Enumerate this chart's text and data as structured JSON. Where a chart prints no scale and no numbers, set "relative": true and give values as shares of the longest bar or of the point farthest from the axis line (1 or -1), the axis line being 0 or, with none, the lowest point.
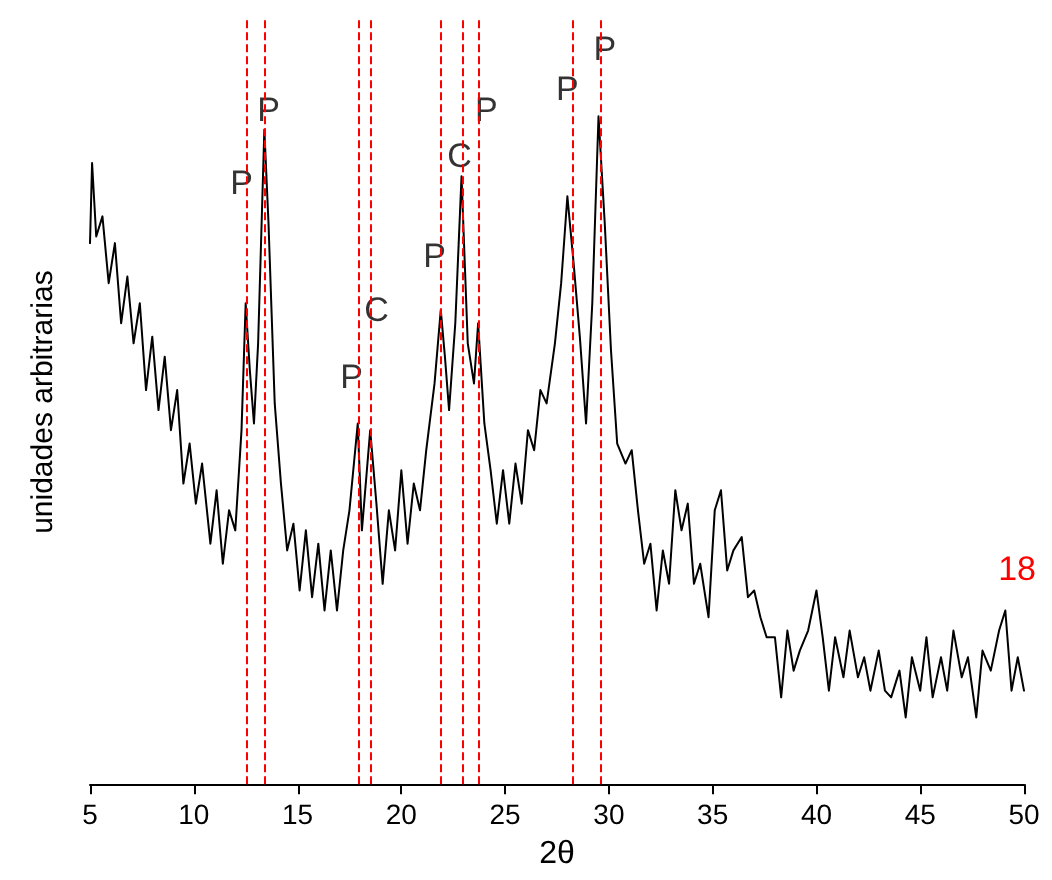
{
  "chart_data": {
    "type": "line",
    "relative": true,
    "xlabel": "2θ",
    "ylabel": "unidades arbitrarias",
    "xlim": [
      5,
      50
    ],
    "xticks": [
      5,
      10,
      15,
      20,
      25,
      30,
      35,
      40,
      45,
      50
    ],
    "grid": false,
    "marker": "none",
    "line_style": "solid",
    "series": [
      {
        "color": "#000000",
        "x": [
          5.0,
          5.1,
          5.3,
          5.6,
          5.9,
          6.2,
          6.5,
          6.8,
          7.1,
          7.4,
          7.7,
          8.0,
          8.3,
          8.6,
          8.9,
          9.2,
          9.5,
          9.8,
          10.1,
          10.4,
          10.8,
          11.1,
          11.4,
          11.7,
          12.0,
          12.3,
          12.5,
          12.7,
          12.9,
          13.1,
          13.4,
          13.6,
          13.9,
          14.2,
          14.5,
          14.8,
          15.1,
          15.4,
          15.7,
          16.0,
          16.3,
          16.6,
          16.9,
          17.2,
          17.5,
          17.9,
          18.1,
          18.5,
          18.8,
          19.1,
          19.4,
          19.7,
          20.0,
          20.3,
          20.6,
          20.9,
          21.2,
          21.6,
          21.9,
          22.1,
          22.3,
          22.6,
          22.9,
          23.2,
          23.5,
          23.7,
          24.0,
          24.3,
          24.6,
          24.9,
          25.2,
          25.5,
          25.8,
          26.1,
          26.4,
          26.7,
          27.0,
          27.4,
          27.7,
          28.0,
          28.3,
          28.6,
          28.9,
          29.2,
          29.5,
          29.8,
          30.1,
          30.4,
          30.8,
          31.1,
          31.4,
          31.7,
          32.0,
          32.3,
          32.6,
          32.9,
          33.2,
          33.5,
          33.8,
          34.1,
          34.4,
          34.8,
          35.1,
          35.4,
          35.7,
          36.0,
          36.4,
          36.7,
          37.0,
          37.3,
          37.6,
          38.0,
          38.3,
          38.6,
          38.9,
          39.2,
          39.6,
          40.0,
          40.3,
          40.6,
          40.9,
          41.3,
          41.6,
          42.0,
          42.3,
          42.6,
          43.0,
          43.3,
          43.6,
          44.0,
          44.3,
          44.6,
          45.0,
          45.3,
          45.6,
          46.0,
          46.3,
          46.6,
          47.0,
          47.3,
          47.7,
          48.0,
          48.4,
          48.8,
          49.1,
          49.4,
          49.7,
          50.0
        ],
        "values": [
          0.81,
          0.93,
          0.82,
          0.85,
          0.75,
          0.81,
          0.69,
          0.76,
          0.66,
          0.72,
          0.59,
          0.67,
          0.56,
          0.64,
          0.53,
          0.59,
          0.45,
          0.51,
          0.42,
          0.48,
          0.36,
          0.44,
          0.33,
          0.41,
          0.38,
          0.53,
          0.72,
          0.62,
          0.54,
          0.66,
          0.98,
          0.84,
          0.57,
          0.45,
          0.35,
          0.39,
          0.29,
          0.38,
          0.28,
          0.36,
          0.26,
          0.35,
          0.26,
          0.35,
          0.41,
          0.54,
          0.38,
          0.53,
          0.42,
          0.3,
          0.41,
          0.35,
          0.47,
          0.36,
          0.45,
          0.41,
          0.5,
          0.6,
          0.71,
          0.64,
          0.56,
          0.69,
          0.91,
          0.66,
          0.6,
          0.69,
          0.54,
          0.47,
          0.39,
          0.47,
          0.39,
          0.48,
          0.42,
          0.53,
          0.5,
          0.59,
          0.57,
          0.66,
          0.75,
          0.88,
          0.78,
          0.67,
          0.54,
          0.72,
          1.0,
          0.84,
          0.65,
          0.51,
          0.48,
          0.5,
          0.41,
          0.33,
          0.36,
          0.26,
          0.35,
          0.3,
          0.44,
          0.38,
          0.42,
          0.3,
          0.33,
          0.25,
          0.41,
          0.44,
          0.32,
          0.35,
          0.37,
          0.28,
          0.29,
          0.25,
          0.22,
          0.22,
          0.13,
          0.23,
          0.17,
          0.2,
          0.23,
          0.29,
          0.22,
          0.14,
          0.22,
          0.16,
          0.23,
          0.16,
          0.19,
          0.14,
          0.2,
          0.14,
          0.13,
          0.17,
          0.1,
          0.19,
          0.14,
          0.22,
          0.13,
          0.19,
          0.14,
          0.23,
          0.16,
          0.19,
          0.1,
          0.2,
          0.17,
          0.23,
          0.26,
          0.14,
          0.19,
          0.14
        ]
      }
    ],
    "ref_lines": [
      {
        "axis": "x",
        "value": 12.5,
        "color": "#ff0000",
        "line_style": "dashed"
      },
      {
        "axis": "x",
        "value": 13.4,
        "color": "#ff0000",
        "line_style": "dashed"
      },
      {
        "axis": "x",
        "value": 17.9,
        "color": "#ff0000",
        "line_style": "dashed"
      },
      {
        "axis": "x",
        "value": 18.5,
        "color": "#ff0000",
        "line_style": "dashed"
      },
      {
        "axis": "x",
        "value": 21.9,
        "color": "#ff0000",
        "line_style": "dashed"
      },
      {
        "axis": "x",
        "value": 22.9,
        "color": "#ff0000",
        "line_style": "dashed"
      },
      {
        "axis": "x",
        "value": 23.7,
        "color": "#ff0000",
        "line_style": "dashed"
      },
      {
        "axis": "x",
        "value": 28.2,
        "color": "#ff0000",
        "line_style": "dashed"
      },
      {
        "axis": "x",
        "value": 29.6,
        "color": "#ff0000",
        "line_style": "dashed"
      }
    ],
    "annotations": [
      {
        "text": "P",
        "x": 12.3,
        "y": 0.9
      },
      {
        "text": "P",
        "x": 13.6,
        "y": 1.01
      },
      {
        "text": "P",
        "x": 17.6,
        "y": 0.61
      },
      {
        "text": "C",
        "x": 18.8,
        "y": 0.71
      },
      {
        "text": "P",
        "x": 21.6,
        "y": 0.79
      },
      {
        "text": "C",
        "x": 22.8,
        "y": 0.94
      },
      {
        "text": "P",
        "x": 24.1,
        "y": 1.01
      },
      {
        "text": "P",
        "x": 28.0,
        "y": 1.04
      },
      {
        "text": "P",
        "x": 29.8,
        "y": 1.1
      },
      "18"
    ]
  }
}
